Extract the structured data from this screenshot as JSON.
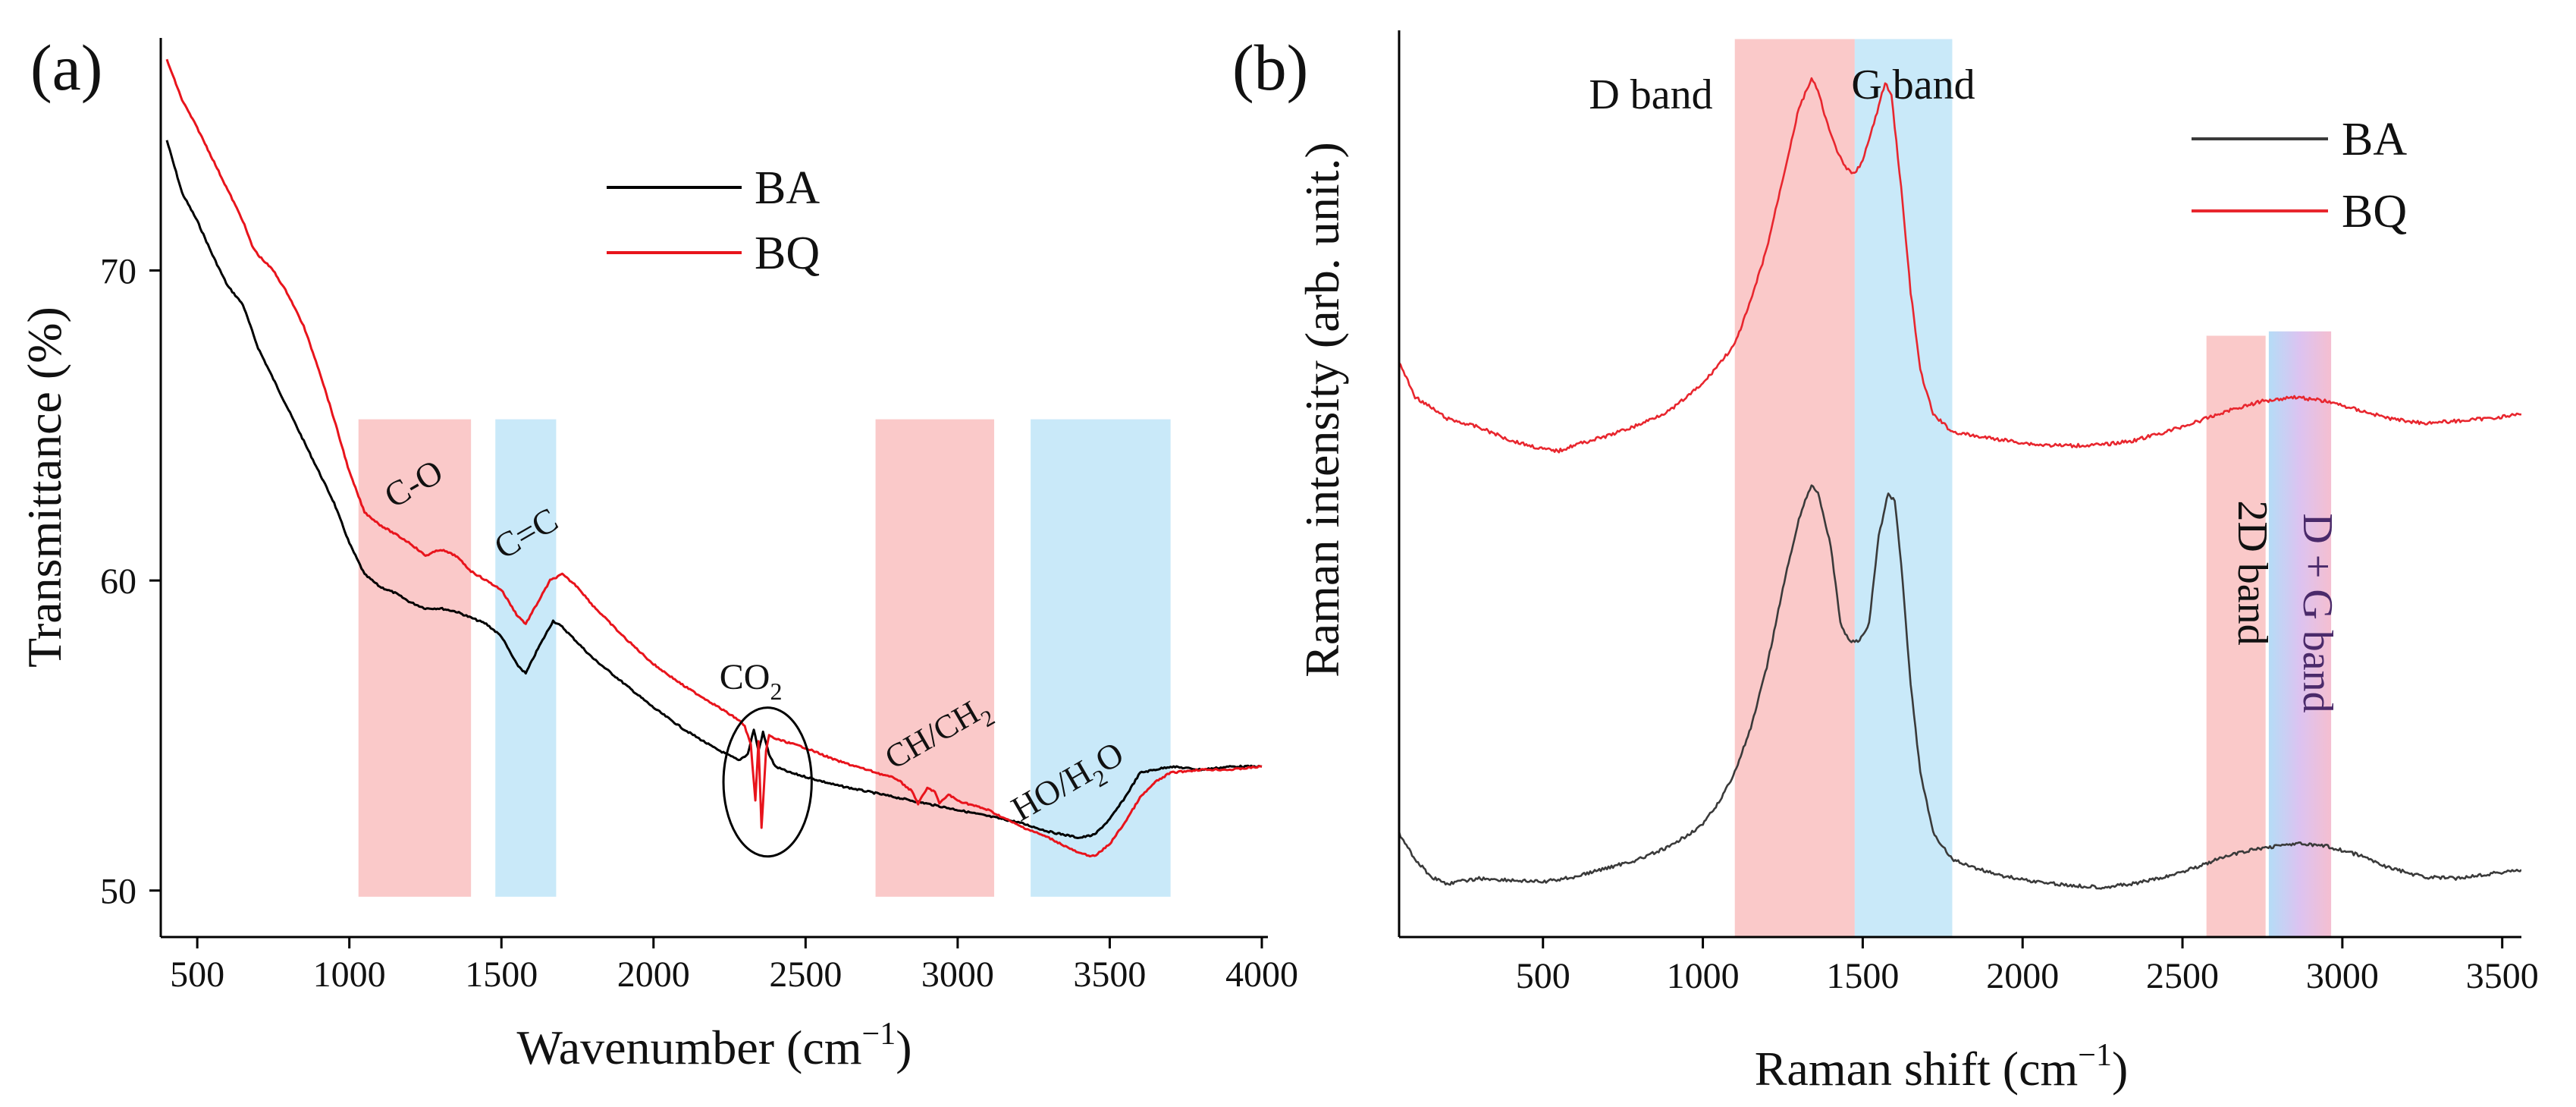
{
  "chart_data": [
    {
      "panel_label": "(a)",
      "type": "line",
      "xlabel_main": "Wavenumber (cm",
      "xlabel_sup": "−1",
      "xlabel_close": ")",
      "ylabel": "Transmittance (%)",
      "xlim": [
        380,
        4020
      ],
      "ylim": [
        48.5,
        77.5
      ],
      "xticks": [
        500,
        1000,
        1500,
        2000,
        2500,
        3000,
        3500,
        4000
      ],
      "yticks": [
        50,
        60,
        70
      ],
      "legend": [
        {
          "name": "BA",
          "color": "#000000"
        },
        {
          "name": "BQ",
          "color": "#e8141c"
        }
      ],
      "bands": [
        {
          "x0": 1030,
          "x1": 1400,
          "y0": 49.8,
          "y1": 65.2,
          "color": "#f7a8a8"
        },
        {
          "x0": 1480,
          "x1": 1680,
          "y0": 49.8,
          "y1": 65.2,
          "color": "#a8dcf5"
        },
        {
          "x0": 2730,
          "x1": 3120,
          "y0": 49.8,
          "y1": 65.2,
          "color": "#f7a8a8"
        },
        {
          "x0": 3240,
          "x1": 3700,
          "y0": 49.8,
          "y1": 65.2,
          "color": "#a8dcf5"
        }
      ],
      "annotations": {
        "co": {
          "text": "C-O",
          "x": 1230,
          "y": 62.8
        },
        "cc": {
          "text": "C=C",
          "x": 1600,
          "y": 61.2
        },
        "co2": {
          "base": "CO",
          "sub": "2",
          "x": 2320,
          "y": 56.5
        },
        "ch": {
          "base": "CH/CH",
          "sub": "2",
          "x": 2950,
          "y": 54.8
        },
        "ho": {
          "base": "HO/H",
          "sub": "2",
          "tail": "O",
          "x": 3380,
          "y": 53.2
        }
      },
      "circle": {
        "cx": 2375,
        "cy": 53.5,
        "rx": 145,
        "ry": 2.4
      },
      "series": [
        {
          "name": "BA",
          "color": "#000000",
          "points": [
            [
              400,
              74.2
            ],
            [
              450,
              72.5
            ],
            [
              500,
              71.6
            ],
            [
              550,
              70.5
            ],
            [
              600,
              69.5
            ],
            [
              650,
              68.9
            ],
            [
              700,
              67.5
            ],
            [
              750,
              66.5
            ],
            [
              800,
              65.5
            ],
            [
              850,
              64.5
            ],
            [
              900,
              63.5
            ],
            [
              950,
              62.5
            ],
            [
              1000,
              61.2
            ],
            [
              1050,
              60.2
            ],
            [
              1100,
              59.8
            ],
            [
              1150,
              59.6
            ],
            [
              1200,
              59.3
            ],
            [
              1250,
              59.1
            ],
            [
              1300,
              59.1
            ],
            [
              1350,
              59.0
            ],
            [
              1400,
              58.8
            ],
            [
              1450,
              58.6
            ],
            [
              1500,
              58.2
            ],
            [
              1550,
              57.3
            ],
            [
              1580,
              57.0
            ],
            [
              1620,
              57.8
            ],
            [
              1670,
              58.7
            ],
            [
              1700,
              58.5
            ],
            [
              1750,
              58.0
            ],
            [
              1800,
              57.5
            ],
            [
              1900,
              56.7
            ],
            [
              2000,
              55.9
            ],
            [
              2100,
              55.2
            ],
            [
              2200,
              54.6
            ],
            [
              2280,
              54.2
            ],
            [
              2310,
              54.4
            ],
            [
              2330,
              55.2
            ],
            [
              2345,
              54.5
            ],
            [
              2360,
              55.1
            ],
            [
              2380,
              54.4
            ],
            [
              2400,
              54.0
            ],
            [
              2450,
              53.8
            ],
            [
              2600,
              53.4
            ],
            [
              2800,
              53.0
            ],
            [
              3000,
              52.6
            ],
            [
              3200,
              52.2
            ],
            [
              3300,
              51.9
            ],
            [
              3400,
              51.7
            ],
            [
              3450,
              51.8
            ],
            [
              3500,
              52.3
            ],
            [
              3550,
              53.0
            ],
            [
              3600,
              53.8
            ],
            [
              3650,
              53.9
            ],
            [
              3700,
              54.0
            ],
            [
              3800,
              53.9
            ],
            [
              3900,
              54.0
            ],
            [
              4000,
              54.0
            ]
          ]
        },
        {
          "name": "BQ",
          "color": "#e8141c",
          "points": [
            [
              400,
              76.8
            ],
            [
              450,
              75.5
            ],
            [
              500,
              74.6
            ],
            [
              550,
              73.6
            ],
            [
              600,
              72.6
            ],
            [
              650,
              71.6
            ],
            [
              680,
              70.8
            ],
            [
              700,
              70.5
            ],
            [
              750,
              70.0
            ],
            [
              800,
              69.2
            ],
            [
              850,
              68.2
            ],
            [
              900,
              66.8
            ],
            [
              950,
              65.2
            ],
            [
              1000,
              63.5
            ],
            [
              1050,
              62.2
            ],
            [
              1100,
              61.8
            ],
            [
              1150,
              61.5
            ],
            [
              1200,
              61.2
            ],
            [
              1250,
              60.8
            ],
            [
              1300,
              61.0
            ],
            [
              1350,
              60.8
            ],
            [
              1400,
              60.3
            ],
            [
              1450,
              60.0
            ],
            [
              1500,
              59.7
            ],
            [
              1550,
              58.9
            ],
            [
              1580,
              58.6
            ],
            [
              1620,
              59.3
            ],
            [
              1660,
              60.0
            ],
            [
              1700,
              60.2
            ],
            [
              1750,
              59.8
            ],
            [
              1800,
              59.2
            ],
            [
              1900,
              58.2
            ],
            [
              2000,
              57.3
            ],
            [
              2100,
              56.6
            ],
            [
              2200,
              56.0
            ],
            [
              2280,
              55.5
            ],
            [
              2300,
              55.3
            ],
            [
              2320,
              54.7
            ],
            [
              2335,
              52.9
            ],
            [
              2345,
              54.8
            ],
            [
              2355,
              52.0
            ],
            [
              2370,
              54.5
            ],
            [
              2380,
              55.0
            ],
            [
              2400,
              54.9
            ],
            [
              2500,
              54.6
            ],
            [
              2600,
              54.2
            ],
            [
              2700,
              53.9
            ],
            [
              2800,
              53.6
            ],
            [
              2850,
              53.2
            ],
            [
              2870,
              52.8
            ],
            [
              2900,
              53.3
            ],
            [
              2925,
              53.2
            ],
            [
              2940,
              52.8
            ],
            [
              2970,
              53.1
            ],
            [
              3000,
              52.9
            ],
            [
              3100,
              52.6
            ],
            [
              3200,
              52.1
            ],
            [
              3300,
              51.7
            ],
            [
              3400,
              51.2
            ],
            [
              3450,
              51.1
            ],
            [
              3500,
              51.5
            ],
            [
              3550,
              52.2
            ],
            [
              3600,
              53.0
            ],
            [
              3650,
              53.5
            ],
            [
              3700,
              53.8
            ],
            [
              3800,
              53.9
            ],
            [
              3900,
              53.9
            ],
            [
              4000,
              54.0
            ]
          ]
        }
      ]
    },
    {
      "panel_label": "(b)",
      "type": "line",
      "xlabel_main": "Raman shift (cm",
      "xlabel_sup": "−1",
      "xlabel_close": ")",
      "ylabel": "Raman intensity (arb. unit.)",
      "xlim": [
        50,
        3560
      ],
      "ylim": [
        0,
        1
      ],
      "xticks": [
        500,
        1000,
        1500,
        2000,
        2500,
        3000,
        3500
      ],
      "legend": [
        {
          "name": "BA",
          "color": "#3a3a3a"
        },
        {
          "name": "BQ",
          "color": "#e8262e"
        }
      ],
      "bands": [
        {
          "x0": 1100,
          "x1": 1475,
          "y0": 0.0,
          "y1": 0.99,
          "color": "#f7a8a8"
        },
        {
          "x0": 1475,
          "x1": 1780,
          "y0": 0.0,
          "y1": 0.99,
          "color": "#a8dcf5"
        },
        {
          "x0": 2575,
          "x1": 2760,
          "y0": 0.0,
          "y1": 0.65,
          "color": "#f7a8a8"
        },
        {
          "x0": 2770,
          "x1": 2965,
          "y0": 0.0,
          "y1": 0.655,
          "color": "gradient"
        }
      ],
      "band_labels": {
        "d_band": "D band",
        "g_band": "G band",
        "band_2d": "2D band",
        "d_g_band": "D + G band"
      },
      "series": [
        {
          "name": "BQ",
          "color": "#e8262e",
          "points": [
            [
              50,
              0.62
            ],
            [
              100,
              0.58
            ],
            [
              200,
              0.555
            ],
            [
              300,
              0.545
            ],
            [
              400,
              0.53
            ],
            [
              500,
              0.52
            ],
            [
              550,
              0.518
            ],
            [
              600,
              0.525
            ],
            [
              700,
              0.535
            ],
            [
              800,
              0.548
            ],
            [
              900,
              0.565
            ],
            [
              1000,
              0.595
            ],
            [
              1100,
              0.64
            ],
            [
              1150,
              0.69
            ],
            [
              1200,
              0.75
            ],
            [
              1250,
              0.83
            ],
            [
              1300,
              0.91
            ],
            [
              1340,
              0.945
            ],
            [
              1360,
              0.93
            ],
            [
              1400,
              0.88
            ],
            [
              1440,
              0.845
            ],
            [
              1470,
              0.835
            ],
            [
              1500,
              0.85
            ],
            [
              1540,
              0.9
            ],
            [
              1570,
              0.94
            ],
            [
              1590,
              0.925
            ],
            [
              1620,
              0.82
            ],
            [
              1650,
              0.7
            ],
            [
              1680,
              0.61
            ],
            [
              1720,
              0.56
            ],
            [
              1780,
              0.54
            ],
            [
              1850,
              0.535
            ],
            [
              1950,
              0.53
            ],
            [
              2050,
              0.525
            ],
            [
              2150,
              0.524
            ],
            [
              2250,
              0.525
            ],
            [
              2350,
              0.53
            ],
            [
              2450,
              0.54
            ],
            [
              2550,
              0.552
            ],
            [
              2650,
              0.565
            ],
            [
              2750,
              0.575
            ],
            [
              2850,
              0.58
            ],
            [
              2950,
              0.575
            ],
            [
              3050,
              0.565
            ],
            [
              3150,
              0.555
            ],
            [
              3250,
              0.55
            ],
            [
              3350,
              0.552
            ],
            [
              3450,
              0.555
            ],
            [
              3560,
              0.56
            ]
          ]
        },
        {
          "name": "BA",
          "color": "#3a3a3a",
          "points": [
            [
              50,
              0.08
            ],
            [
              100,
              0.05
            ],
            [
              150,
              0.03
            ],
            [
              200,
              0.022
            ],
            [
              300,
              0.028
            ],
            [
              400,
              0.026
            ],
            [
              500,
              0.024
            ],
            [
              600,
              0.03
            ],
            [
              700,
              0.04
            ],
            [
              800,
              0.05
            ],
            [
              900,
              0.065
            ],
            [
              1000,
              0.09
            ],
            [
              1050,
              0.115
            ],
            [
              1100,
              0.15
            ],
            [
              1150,
              0.2
            ],
            [
              1200,
              0.27
            ],
            [
              1250,
              0.36
            ],
            [
              1300,
              0.44
            ],
            [
              1340,
              0.48
            ],
            [
              1360,
              0.47
            ],
            [
              1400,
              0.41
            ],
            [
              1430,
              0.32
            ],
            [
              1460,
              0.3
            ],
            [
              1490,
              0.3
            ],
            [
              1520,
              0.32
            ],
            [
              1550,
              0.42
            ],
            [
              1580,
              0.47
            ],
            [
              1600,
              0.46
            ],
            [
              1620,
              0.39
            ],
            [
              1650,
              0.25
            ],
            [
              1680,
              0.15
            ],
            [
              1720,
              0.08
            ],
            [
              1780,
              0.05
            ],
            [
              1850,
              0.04
            ],
            [
              1950,
              0.03
            ],
            [
              2050,
              0.024
            ],
            [
              2150,
              0.02
            ],
            [
              2250,
              0.018
            ],
            [
              2350,
              0.022
            ],
            [
              2450,
              0.03
            ],
            [
              2550,
              0.042
            ],
            [
              2650,
              0.055
            ],
            [
              2750,
              0.063
            ],
            [
              2850,
              0.068
            ],
            [
              2950,
              0.065
            ],
            [
              3050,
              0.055
            ],
            [
              3150,
              0.04
            ],
            [
              3250,
              0.03
            ],
            [
              3350,
              0.028
            ],
            [
              3450,
              0.033
            ],
            [
              3560,
              0.038
            ]
          ]
        }
      ]
    }
  ]
}
